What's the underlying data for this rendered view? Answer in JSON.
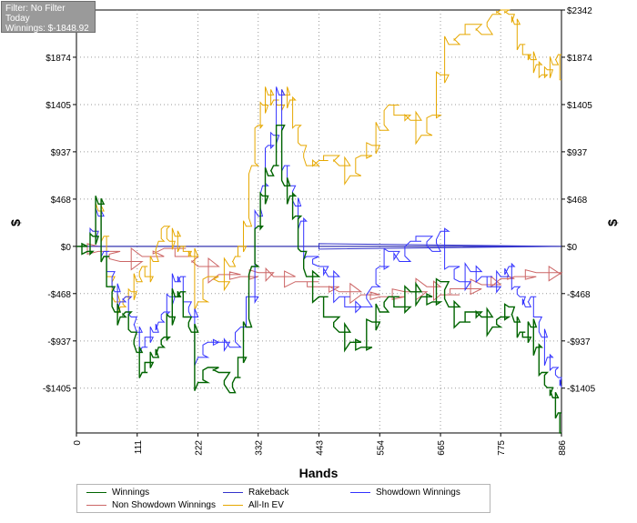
{
  "info": {
    "filter": "Filter: No Filter",
    "period": "Today",
    "winnings": "Winnings: $-1848.92"
  },
  "chart_data": {
    "type": "line",
    "xlabel": "Hands",
    "ylabel_left": "$",
    "ylabel_right": "$",
    "x_range": [
      0,
      886
    ],
    "y_range": [
      -1848.92,
      2342
    ],
    "x_ticks": [
      "0",
      "111",
      "222",
      "332",
      "443",
      "554",
      "665",
      "775",
      "886"
    ],
    "y_ticks_left": [
      {
        "value": 1874,
        "label": "$1874"
      },
      {
        "value": 1405,
        "label": "$1405"
      },
      {
        "value": 937,
        "label": "$937"
      },
      {
        "value": 468,
        "label": "$468"
      },
      {
        "value": 0,
        "label": "$0"
      },
      {
        "value": -468,
        "label": "-$468"
      },
      {
        "value": -937,
        "label": "-$937"
      },
      {
        "value": -1405,
        "label": "-$1405"
      }
    ],
    "y_ticks_right": [
      {
        "value": 2342,
        "label": "$2342"
      },
      {
        "value": 1874,
        "label": "$1874"
      },
      {
        "value": 1405,
        "label": "$1405"
      },
      {
        "value": 937,
        "label": "$937"
      },
      {
        "value": 468,
        "label": "$468"
      },
      {
        "value": 0,
        "label": "$0"
      },
      {
        "value": -468,
        "label": "-$468"
      },
      {
        "value": -937,
        "label": "-$937"
      },
      {
        "value": -1405,
        "label": "-$1405"
      }
    ],
    "grid": true,
    "legend_position": "bottom",
    "series": [
      {
        "name": "Winnings",
        "color": "#006400",
        "x": [
          0,
          20,
          30,
          40,
          50,
          60,
          70,
          80,
          90,
          100,
          110,
          120,
          130,
          140,
          150,
          160,
          170,
          180,
          190,
          200,
          210,
          222,
          240,
          260,
          280,
          290,
          300,
          310,
          320,
          332,
          340,
          350,
          360,
          370,
          380,
          390,
          400,
          410,
          420,
          443,
          460,
          480,
          500,
          520,
          540,
          554,
          570,
          590,
          610,
          630,
          650,
          665,
          680,
          700,
          720,
          740,
          760,
          775,
          790,
          800,
          810,
          820,
          830,
          840,
          850,
          860,
          870,
          880,
          886
        ],
        "y": [
          0,
          -50,
          100,
          420,
          -100,
          -400,
          -650,
          -700,
          -650,
          -850,
          -1050,
          -1250,
          -1150,
          -1100,
          -1000,
          -900,
          -700,
          -500,
          -450,
          -700,
          -850,
          -1350,
          -1200,
          -1250,
          -1450,
          -1300,
          -1100,
          -800,
          -200,
          200,
          500,
          700,
          800,
          1200,
          600,
          500,
          300,
          -50,
          -300,
          -500,
          -700,
          -850,
          -950,
          -1000,
          -750,
          -650,
          -500,
          -600,
          -450,
          -500,
          -550,
          -350,
          -600,
          -750,
          -650,
          -700,
          -800,
          -700,
          -600,
          -750,
          -850,
          -900,
          -800,
          -1000,
          -1250,
          -1400,
          -1500,
          -1650,
          -1848.92
        ]
      },
      {
        "name": "Rakeback",
        "color": "#3333cc",
        "x": [
          0,
          886
        ],
        "y": [
          0,
          0
        ]
      },
      {
        "name": "Showdown Winnings",
        "color": "#3232ff",
        "x": [
          0,
          20,
          30,
          40,
          50,
          60,
          70,
          80,
          90,
          100,
          110,
          120,
          130,
          140,
          150,
          160,
          170,
          180,
          190,
          200,
          210,
          222,
          240,
          260,
          280,
          300,
          320,
          332,
          340,
          350,
          360,
          370,
          380,
          390,
          400,
          410,
          420,
          443,
          460,
          480,
          500,
          520,
          540,
          554,
          570,
          590,
          610,
          630,
          650,
          665,
          680,
          700,
          720,
          740,
          760,
          775,
          790,
          800,
          810,
          820,
          830,
          840,
          850,
          860,
          870,
          880,
          886
        ],
        "y": [
          0,
          -50,
          150,
          300,
          -50,
          -250,
          -450,
          -550,
          -500,
          -700,
          -850,
          -1000,
          -900,
          -850,
          -750,
          -650,
          -500,
          -350,
          -300,
          -550,
          -700,
          -1100,
          -950,
          -950,
          -1000,
          -800,
          -500,
          300,
          600,
          1000,
          1100,
          1500,
          800,
          600,
          400,
          250,
          -100,
          -200,
          -300,
          -500,
          -600,
          -600,
          -400,
          -200,
          -50,
          -150,
          50,
          100,
          -50,
          150,
          -200,
          -350,
          -250,
          -300,
          -400,
          -300,
          -200,
          -400,
          -500,
          -600,
          -500,
          -700,
          -900,
          -1100,
          -1200,
          -1300,
          -1400
        ]
      },
      {
        "name": "Non Showdown Winnings",
        "color": "#cc6666",
        "x": [
          0,
          40,
          80,
          120,
          160,
          200,
          222,
          260,
          300,
          332,
          360,
          400,
          443,
          480,
          520,
          554,
          600,
          640,
          665,
          700,
          740,
          775,
          800,
          840,
          886
        ],
        "y": [
          0,
          -50,
          -150,
          -100,
          -20,
          -100,
          -200,
          -280,
          -300,
          -260,
          -300,
          -350,
          -400,
          -450,
          -480,
          -500,
          -450,
          -400,
          -480,
          -420,
          -380,
          -320,
          -300,
          -260,
          -280
        ]
      },
      {
        "name": "All-In EV",
        "color": "#e6a800",
        "x": [
          0,
          20,
          30,
          40,
          50,
          60,
          70,
          80,
          90,
          100,
          110,
          120,
          130,
          140,
          150,
          160,
          170,
          180,
          190,
          200,
          210,
          222,
          240,
          260,
          280,
          290,
          300,
          310,
          320,
          332,
          340,
          350,
          360,
          370,
          380,
          390,
          400,
          410,
          420,
          443,
          460,
          480,
          500,
          520,
          540,
          554,
          570,
          590,
          610,
          630,
          650,
          665,
          680,
          700,
          720,
          740,
          760,
          775,
          790,
          800,
          810,
          820,
          830,
          840,
          850,
          860,
          870,
          880,
          886
        ],
        "y": [
          0,
          -50,
          150,
          350,
          100,
          -300,
          -550,
          -600,
          -500,
          -450,
          -350,
          -200,
          -300,
          -150,
          50,
          200,
          50,
          100,
          0,
          -50,
          -100,
          -550,
          -300,
          -350,
          -200,
          -100,
          0,
          200,
          800,
          1200,
          1400,
          1500,
          1450,
          1400,
          1500,
          1450,
          1200,
          1000,
          800,
          850,
          900,
          800,
          700,
          900,
          1000,
          1150,
          1400,
          1300,
          1250,
          1100,
          1300,
          1700,
          2000,
          2100,
          2200,
          2100,
          2300,
          2342,
          2300,
          2200,
          2000,
          1900,
          1850,
          1800,
          1700,
          1750,
          1800,
          1900,
          1650
        ]
      }
    ]
  },
  "legend": {
    "items": [
      {
        "label": "Winnings",
        "color": "#006400"
      },
      {
        "label": "Rakeback",
        "color": "#3333cc"
      },
      {
        "label": "Showdown Winnings",
        "color": "#3232ff"
      },
      {
        "label": "Non Showdown Winnings",
        "color": "#cc6666"
      },
      {
        "label": "All-In EV",
        "color": "#e6a800"
      }
    ]
  }
}
